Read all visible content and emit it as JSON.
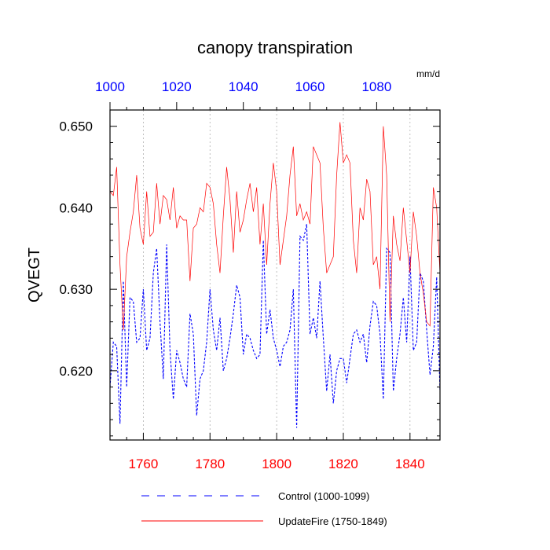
{
  "chart_data": {
    "type": "line",
    "title": "canopy transpiration",
    "units_label": "mm/d",
    "ylabel": "QVEGT",
    "ylim": [
      0.6115,
      0.652
    ],
    "yticks": [
      0.62,
      0.63,
      0.64,
      0.65
    ],
    "ytick_labels": [
      "0.620",
      "0.630",
      "0.640",
      "0.650"
    ],
    "bottom_axis": {
      "xlim": [
        1750,
        1849
      ],
      "ticks": [
        1760,
        1780,
        1800,
        1820,
        1840
      ],
      "tick_labels": [
        "1760",
        "1780",
        "1800",
        "1820",
        "1840"
      ],
      "color": "#ff0000"
    },
    "top_axis": {
      "xlim": [
        1000,
        1099
      ],
      "ticks": [
        1000,
        1020,
        1040,
        1060,
        1080
      ],
      "tick_labels": [
        "1000",
        "1020",
        "1040",
        "1060",
        "1080"
      ],
      "color": "#0000ff"
    },
    "grid": "x-dashed",
    "legend": "bottom",
    "series": [
      {
        "name": "Control (1000-1099)",
        "color": "#0000ff",
        "style": "dashed",
        "axis": "top",
        "x_start": 1000,
        "values": [
          0.618,
          0.6235,
          0.623,
          0.6135,
          0.631,
          0.618,
          0.629,
          0.6285,
          0.6235,
          0.624,
          0.63,
          0.6225,
          0.624,
          0.632,
          0.635,
          0.626,
          0.619,
          0.6355,
          0.6225,
          0.6165,
          0.6225,
          0.621,
          0.619,
          0.618,
          0.627,
          0.6245,
          0.6145,
          0.619,
          0.62,
          0.6235,
          0.63,
          0.625,
          0.6225,
          0.6265,
          0.62,
          0.6215,
          0.624,
          0.627,
          0.6305,
          0.629,
          0.622,
          0.6245,
          0.624,
          0.6225,
          0.6215,
          0.622,
          0.636,
          0.6245,
          0.6275,
          0.624,
          0.6225,
          0.6205,
          0.623,
          0.6235,
          0.625,
          0.63,
          0.613,
          0.6365,
          0.636,
          0.638,
          0.6245,
          0.6265,
          0.624,
          0.631,
          0.624,
          0.6175,
          0.622,
          0.616,
          0.62,
          0.6215,
          0.6215,
          0.6185,
          0.6215,
          0.6245,
          0.625,
          0.6235,
          0.6245,
          0.621,
          0.6255,
          0.6285,
          0.628,
          0.6245,
          0.6165,
          0.635,
          0.6345,
          0.6175,
          0.6215,
          0.6245,
          0.629,
          0.6235,
          0.634,
          0.6225,
          0.6235,
          0.632,
          0.631,
          0.625,
          0.6195,
          0.623,
          0.6315,
          0.6175
        ]
      },
      {
        "name": "UpdateFire (1750-1849)",
        "color": "#ff0000",
        "style": "solid",
        "axis": "bottom",
        "x_start": 1750,
        "values": [
          0.642,
          0.6415,
          0.645,
          0.633,
          0.625,
          0.634,
          0.637,
          0.6395,
          0.644,
          0.6375,
          0.6355,
          0.642,
          0.6365,
          0.637,
          0.643,
          0.638,
          0.6415,
          0.641,
          0.6385,
          0.6425,
          0.6375,
          0.639,
          0.6385,
          0.6385,
          0.631,
          0.6375,
          0.638,
          0.64,
          0.6395,
          0.643,
          0.6425,
          0.6405,
          0.6355,
          0.632,
          0.639,
          0.645,
          0.641,
          0.6345,
          0.642,
          0.637,
          0.6385,
          0.641,
          0.643,
          0.6395,
          0.6425,
          0.6355,
          0.6405,
          0.633,
          0.6405,
          0.6455,
          0.642,
          0.633,
          0.636,
          0.639,
          0.644,
          0.6475,
          0.639,
          0.6405,
          0.6385,
          0.6395,
          0.638,
          0.6475,
          0.6465,
          0.6455,
          0.6375,
          0.632,
          0.633,
          0.634,
          0.644,
          0.6505,
          0.6455,
          0.6465,
          0.6455,
          0.636,
          0.632,
          0.64,
          0.6385,
          0.6435,
          0.642,
          0.633,
          0.634,
          0.63,
          0.65,
          0.644,
          0.626,
          0.639,
          0.6355,
          0.6335,
          0.64,
          0.636,
          0.632,
          0.6395,
          0.6365,
          0.632,
          0.6295,
          0.626,
          0.6255,
          0.6425,
          0.64,
          0.632
        ]
      }
    ]
  }
}
